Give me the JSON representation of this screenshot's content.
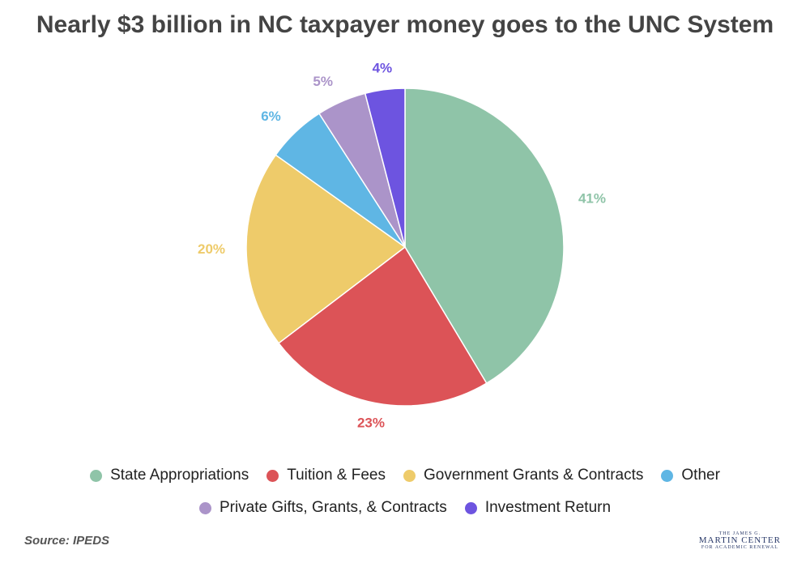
{
  "chart_data": {
    "type": "pie",
    "title": "Nearly $3 billion in NC taxpayer money goes to the UNC System",
    "categories": [
      "State Appropriations",
      "Tuition & Fees",
      "Government Grants & Contracts",
      "Other",
      "Private Gifts, Grants, & Contracts",
      "Investment Return"
    ],
    "values": [
      41,
      23,
      20,
      6,
      5,
      4
    ],
    "value_labels": [
      "41%",
      "23%",
      "20%",
      "6%",
      "5%",
      "4%"
    ],
    "colors": [
      "#8fc4a8",
      "#dc5357",
      "#eecb6a",
      "#5fb6e4",
      "#ab94c9",
      "#6d54e0"
    ],
    "legend": "bottom"
  },
  "source": "Source: IPEDS",
  "logo": [
    "THE JAMES G.",
    "MARTIN CENTER",
    "FOR ACADEMIC RENEWAL"
  ]
}
